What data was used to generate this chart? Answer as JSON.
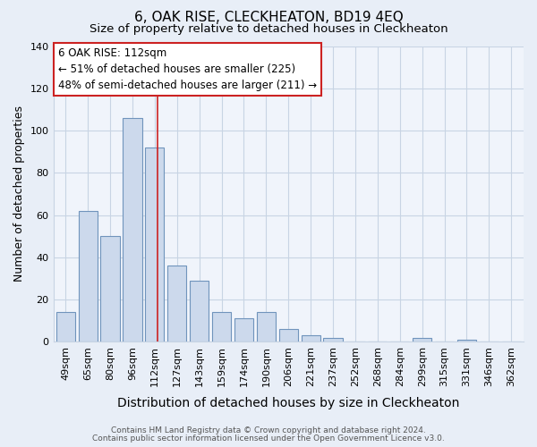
{
  "title": "6, OAK RISE, CLECKHEATON, BD19 4EQ",
  "subtitle": "Size of property relative to detached houses in Cleckheaton",
  "xlabel": "Distribution of detached houses by size in Cleckheaton",
  "ylabel": "Number of detached properties",
  "categories": [
    "49sqm",
    "65sqm",
    "80sqm",
    "96sqm",
    "112sqm",
    "127sqm",
    "143sqm",
    "159sqm",
    "174sqm",
    "190sqm",
    "206sqm",
    "221sqm",
    "237sqm",
    "252sqm",
    "268sqm",
    "284sqm",
    "299sqm",
    "315sqm",
    "331sqm",
    "346sqm",
    "362sqm"
  ],
  "values": [
    14,
    62,
    50,
    106,
    92,
    36,
    29,
    14,
    11,
    14,
    6,
    3,
    2,
    0,
    0,
    0,
    2,
    0,
    1,
    0,
    0
  ],
  "bar_color": "#ccd9ec",
  "bar_edge_color": "#7094bc",
  "vline_index": 4,
  "vline_color": "#cc2222",
  "ylim": [
    0,
    140
  ],
  "yticks": [
    0,
    20,
    40,
    60,
    80,
    100,
    120,
    140
  ],
  "annotation_title": "6 OAK RISE: 112sqm",
  "annotation_line1": "← 51% of detached houses are smaller (225)",
  "annotation_line2": "48% of semi-detached houses are larger (211) →",
  "footer_line1": "Contains HM Land Registry data © Crown copyright and database right 2024.",
  "footer_line2": "Contains public sector information licensed under the Open Government Licence v3.0.",
  "background_color": "#e8eef7",
  "plot_background_color": "#f0f4fb",
  "grid_color": "#c8d4e4",
  "title_fontsize": 11,
  "subtitle_fontsize": 9.5,
  "xlabel_fontsize": 10,
  "ylabel_fontsize": 9,
  "tick_fontsize": 8,
  "annotation_box_edge_color": "#cc2222",
  "annotation_box_face_color": "#ffffff",
  "footer_color": "#555555",
  "footer_fontsize": 6.5
}
